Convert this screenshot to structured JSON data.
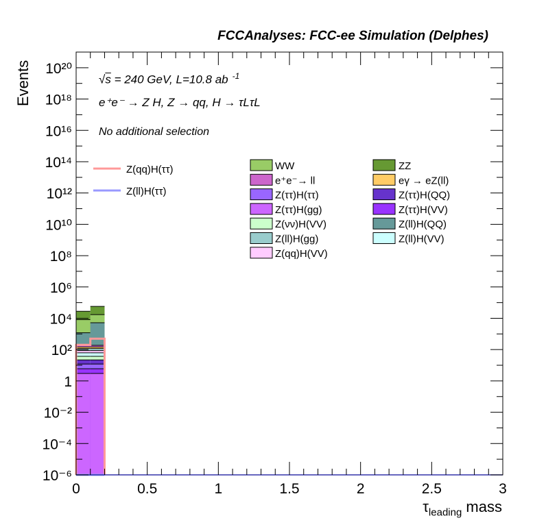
{
  "chart_data": {
    "type": "bar",
    "title": "FCCAnalyses: FCC-ee Simulation (Delphes)",
    "annotations": [
      "√s = 240 GeV, L=10.8 ab⁻¹",
      "e⁺e⁻ → Z H, Z → qq, H → τLτL",
      "No additional selection"
    ],
    "ann1": {
      "sqrt": "s",
      "rest": " = 240 GeV, L=10.8 ab",
      "sup": "-1"
    },
    "ann2": "e⁺e⁻ → Z H, Z → qq, H → τLτL",
    "ann3": "No additional selection",
    "xlabel": "τleading mass",
    "xlabel_main": "τ",
    "xlabel_sub": "leading",
    "xlabel_tail": " mass",
    "ylabel": "Events",
    "xlim": [
      0,
      3
    ],
    "ylim": [
      1e-06,
      1e+21
    ],
    "y_log": true,
    "grid": false,
    "x_ticks": [
      "0",
      "0.5",
      "1",
      "1.5",
      "2",
      "2.5",
      "3"
    ],
    "y_ticks": [
      "10⁻⁶",
      "10⁻⁴",
      "10⁻²",
      "1",
      "10²",
      "10⁴",
      "10⁶",
      "10⁸",
      "10¹⁰",
      "10¹²",
      "10¹⁴",
      "10¹⁶",
      "10¹⁸",
      "10²⁰"
    ],
    "bin_edges": [
      0,
      0.1,
      0.2
    ],
    "stack": [
      {
        "name": "Z(ττ)H(gg)",
        "color": "#cc66ff",
        "values": [
          3.0,
          3.0
        ]
      },
      {
        "name": "Z(ττ)H(VV)",
        "color": "#9933ff",
        "values": [
          3.0,
          3.0
        ]
      },
      {
        "name": "Z(ττ)H(ττ)",
        "color": "#9966ff",
        "values": [
          6.0,
          6.0
        ]
      },
      {
        "name": "Z(ττ)H(QQ)",
        "color": "#6633cc",
        "values": [
          10.0,
          10.0
        ]
      },
      {
        "name": "Z(νν)H(VV)",
        "color": "#ccffcc",
        "values": [
          15.0,
          15.0
        ]
      },
      {
        "name": "Z(ll)H(VV)",
        "color": "#ccffff",
        "values": [
          25.0,
          25.0
        ]
      },
      {
        "name": "Z(qq)H(VV)",
        "color": "#ffccff",
        "values": [
          25.0,
          25.0
        ]
      },
      {
        "name": "Z(ll)H(gg)",
        "color": "#99cccc",
        "values": [
          30.0,
          30.0
        ]
      },
      {
        "name": "eγ → eZ(ll)",
        "color": "#ffcc66",
        "values": [
          30.0,
          30.0
        ]
      },
      {
        "name": "e⁺e⁻→ ll",
        "color": "#cc66cc",
        "values": [
          40.0,
          40.0
        ]
      },
      {
        "name": "Z(ll)H(QQ)",
        "color": "#669999",
        "values": [
          1000.0,
          5000.0
        ]
      },
      {
        "name": "WW",
        "color": "#99cc66",
        "values": [
          7000.0,
          12000.0
        ]
      },
      {
        "name": "ZZ",
        "color": "#669933",
        "values": [
          20000.0,
          40000.0
        ]
      }
    ],
    "lines": [
      {
        "name": "Z(qq)H(ττ)",
        "color": "#ff9999",
        "values": [
          200.0,
          500.0
        ]
      },
      {
        "name": "Z(ll)H(ττ)",
        "color": "#9999ff",
        "values": [
          0.0,
          0.0
        ]
      }
    ],
    "legend_placement": "upper-right",
    "legend_lines": [
      "Z(qq)H(ττ)",
      "Z(ll)H(ττ)"
    ],
    "legend_col1": [
      "WW",
      "e⁺e⁻→ ll",
      "Z(ττ)H(ττ)",
      "Z(ττ)H(gg)",
      "Z(νν)H(VV)",
      "Z(ll)H(gg)",
      "Z(qq)H(VV)"
    ],
    "legend_col2": [
      "ZZ",
      "eγ → eZ(ll)",
      "Z(ττ)H(QQ)",
      "Z(ττ)H(VV)",
      "Z(ll)H(QQ)",
      "Z(ll)H(VV)"
    ]
  }
}
